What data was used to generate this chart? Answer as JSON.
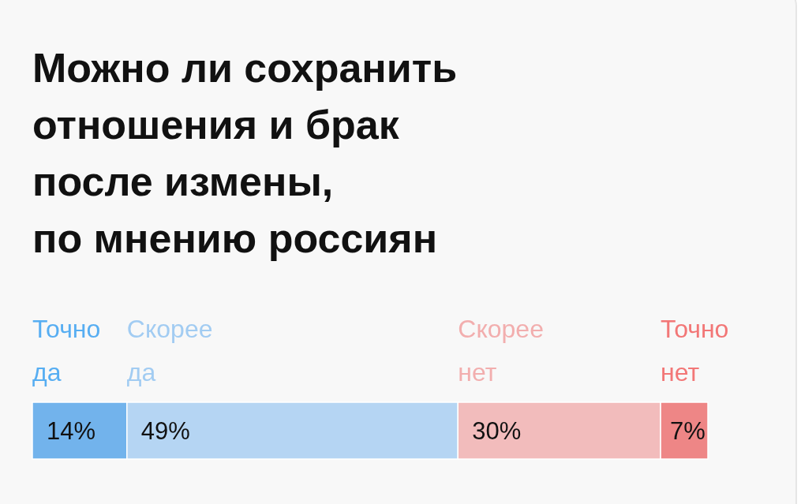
{
  "chart_data": {
    "type": "bar",
    "title": "Можно ли сохранить\nотношения и брак\nпосле измены,\nпо мнению россиян",
    "orientation": "horizontal",
    "stacked": true,
    "categories": [
      null
    ],
    "legend": "top",
    "series": [
      {
        "name": "Точно да",
        "color": "#72b3ec",
        "values": [
          14
        ],
        "value_labels": [
          "14%"
        ]
      },
      {
        "name": "Скорее да",
        "color": "#b5d5f3",
        "values": [
          49
        ],
        "value_labels": [
          "49%"
        ]
      },
      {
        "name": "Скорее нет",
        "color": "#f2bcbc",
        "values": [
          30
        ],
        "value_labels": [
          "30%"
        ]
      },
      {
        "name": "Точно нет",
        "color": "#ee8686",
        "values": [
          7
        ],
        "value_labels": [
          "7%"
        ]
      }
    ]
  }
}
